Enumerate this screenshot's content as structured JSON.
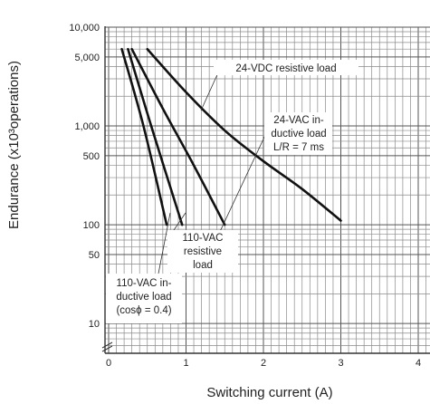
{
  "chart_data": {
    "type": "line",
    "xlabel": "Switching current (A)",
    "ylabel": "Endurance (x10³operations)",
    "xscale": "linear",
    "yscale": "log",
    "xlim": [
      0,
      4
    ],
    "ylim": [
      5,
      10000
    ],
    "grid": true,
    "x_ticks": [
      "0",
      "1",
      "2",
      "3",
      "4"
    ],
    "y_ticks": [
      {
        "value": 10000,
        "label": "10,000"
      },
      {
        "value": 5000,
        "label": "5,000"
      },
      {
        "value": 1000,
        "label": "1,000"
      },
      {
        "value": 500,
        "label": "500"
      },
      {
        "value": 100,
        "label": "100"
      },
      {
        "value": 50,
        "label": "50"
      },
      {
        "value": 10,
        "label": "10"
      }
    ],
    "series": [
      {
        "name": "24-VDC resistive load",
        "label_lines": [
          "24-VDC resistive load"
        ],
        "x": [
          0.5,
          1.0,
          1.5,
          2.0,
          2.5,
          3.0
        ],
        "y": [
          6000,
          2200,
          900,
          440,
          230,
          110
        ]
      },
      {
        "name": "24-VAC inductive load L/R = 7 ms",
        "label_lines": [
          "24-VAC in-",
          "ductive load",
          "L/R = 7 ms"
        ],
        "x": [
          0.3,
          0.7,
          1.1,
          1.5
        ],
        "y": [
          6000,
          1500,
          400,
          100
        ]
      },
      {
        "name": "110-VAC resistive load",
        "label_lines": [
          "110-VAC",
          "resistive",
          "load"
        ],
        "x": [
          0.25,
          0.55,
          0.95
        ],
        "y": [
          6000,
          1000,
          100
        ]
      },
      {
        "name": "110-VAC inductive load (cosϕ = 0.4)",
        "label_lines": [
          "110-VAC in-",
          "ductive load",
          "(cosϕ = 0.4)"
        ],
        "x": [
          0.17,
          0.45,
          0.75
        ],
        "y": [
          6000,
          1000,
          100
        ]
      }
    ]
  }
}
